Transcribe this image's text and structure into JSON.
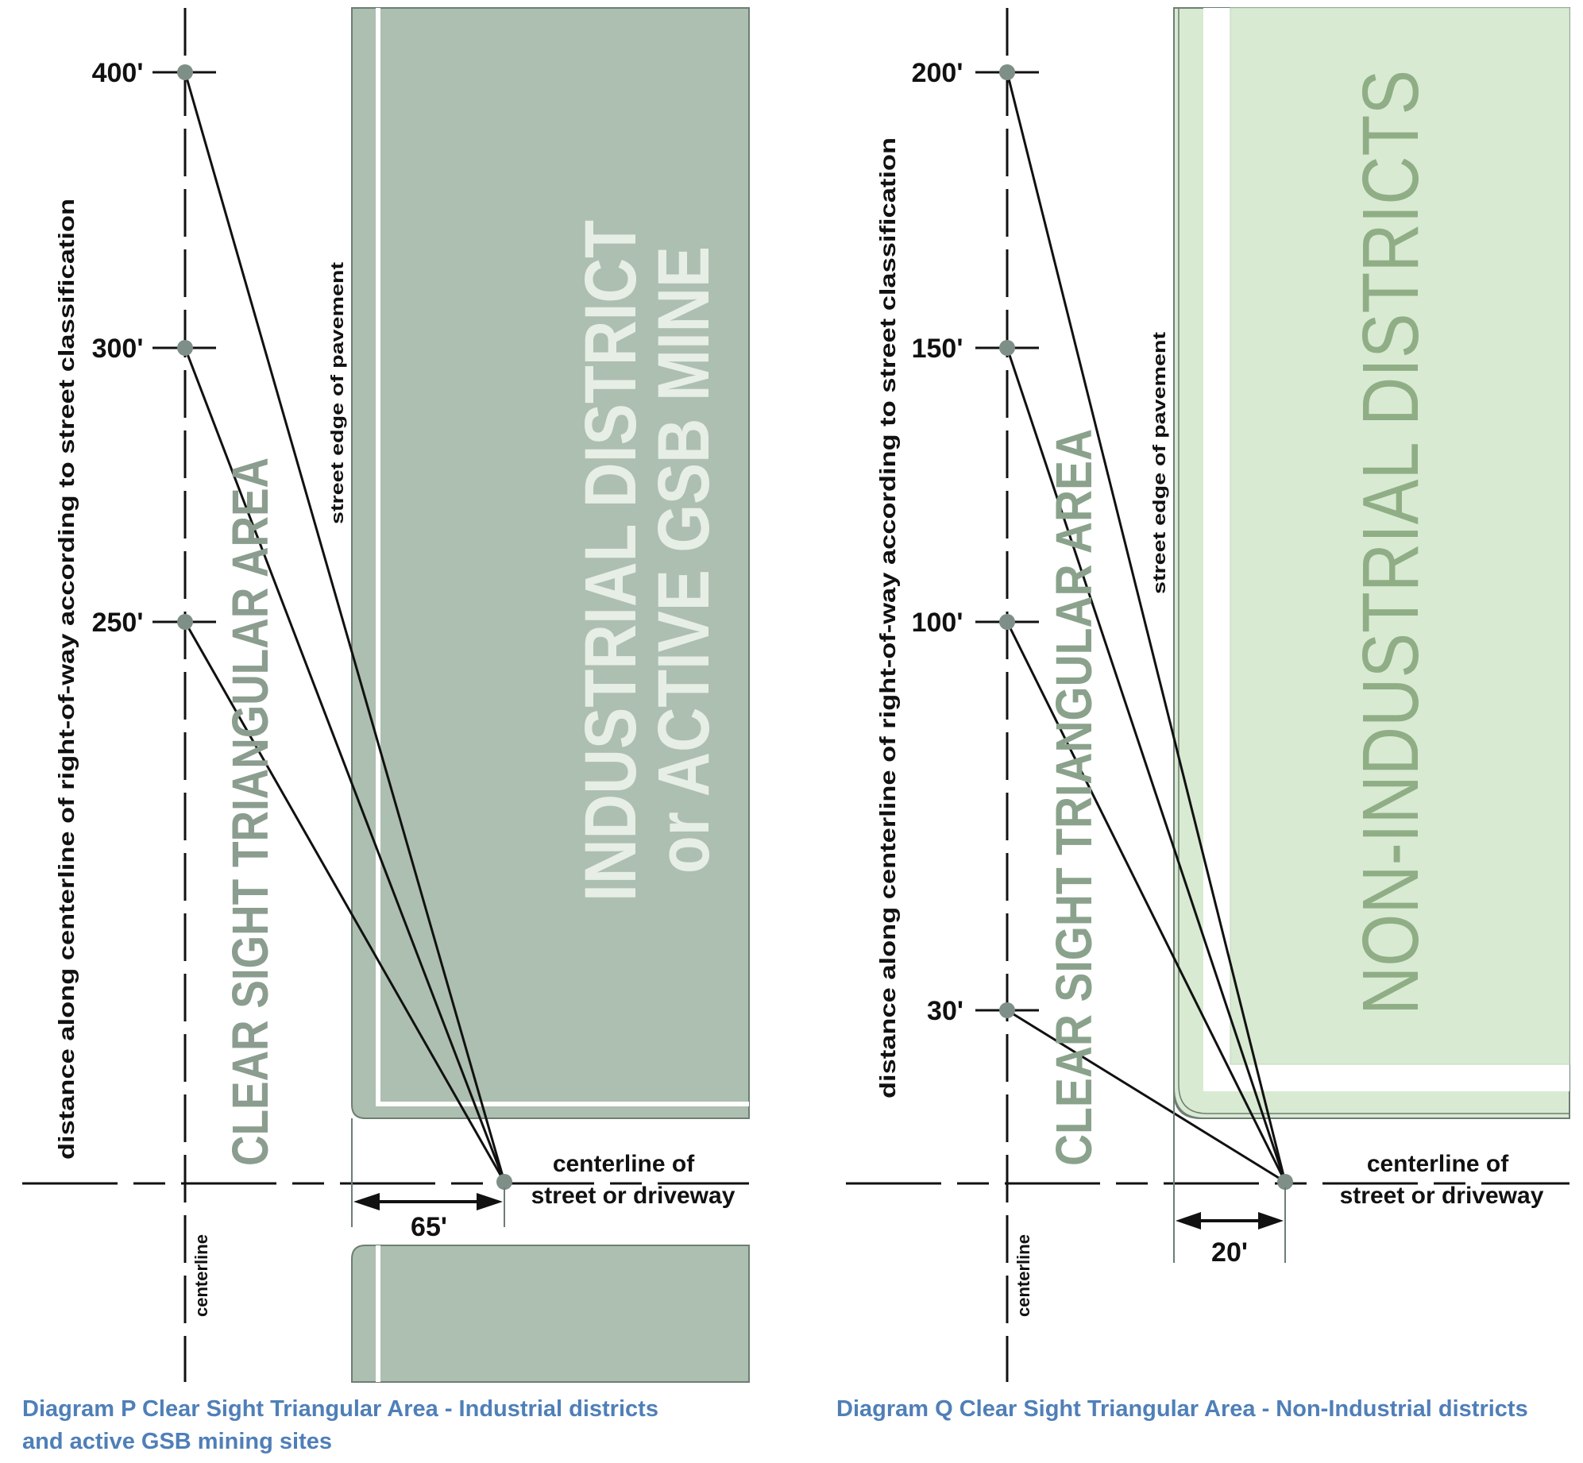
{
  "colors": {
    "industrial_fill": "#adbfb0",
    "non_industrial_fill": "#d9ead3",
    "sight_area_text_p": "#8a9d8e",
    "sight_area_text_q": "#8aa28c",
    "industrial_text": "#e6eee6",
    "non_industrial_text": "#8fae86",
    "dot": "#7d8f86",
    "caption": "#4f7fb8",
    "line": "#111111"
  },
  "diagram_p": {
    "tick_labels": [
      "400'",
      "300'",
      "250'"
    ],
    "axis_label": "distance along centerline of right-of-way according to street classification",
    "area_label": "CLEAR SIGHT TRIANGULAR AREA",
    "district_line1": "INDUSTRIAL DISTRICT",
    "district_line2": "or ACTIVE GSB MINE",
    "pavement_label": "street edge of pavement",
    "street_line1": "centerline of",
    "street_line2": "street or driveway",
    "centerline_label": "centerline",
    "offset_label": "65'",
    "caption_line1": "Diagram P Clear Sight Triangular Area - Industrial districts",
    "caption_line2": "and active GSB mining sites"
  },
  "diagram_q": {
    "tick_labels": [
      "200'",
      "150'",
      "100'",
      "30'"
    ],
    "axis_label": "distance along centerline of right-of-way according to street classification",
    "area_label": "CLEAR SIGHT TRIANGULAR AREA",
    "district_label": "NON-INDUSTRIAL DISTRICTS",
    "pavement_label": "street edge of pavement",
    "street_line1": "centerline of",
    "street_line2": "street or driveway",
    "centerline_label": "centerline",
    "offset_label": "20'",
    "caption": "Diagram Q Clear Sight Triangular Area - Non-Industrial districts"
  }
}
